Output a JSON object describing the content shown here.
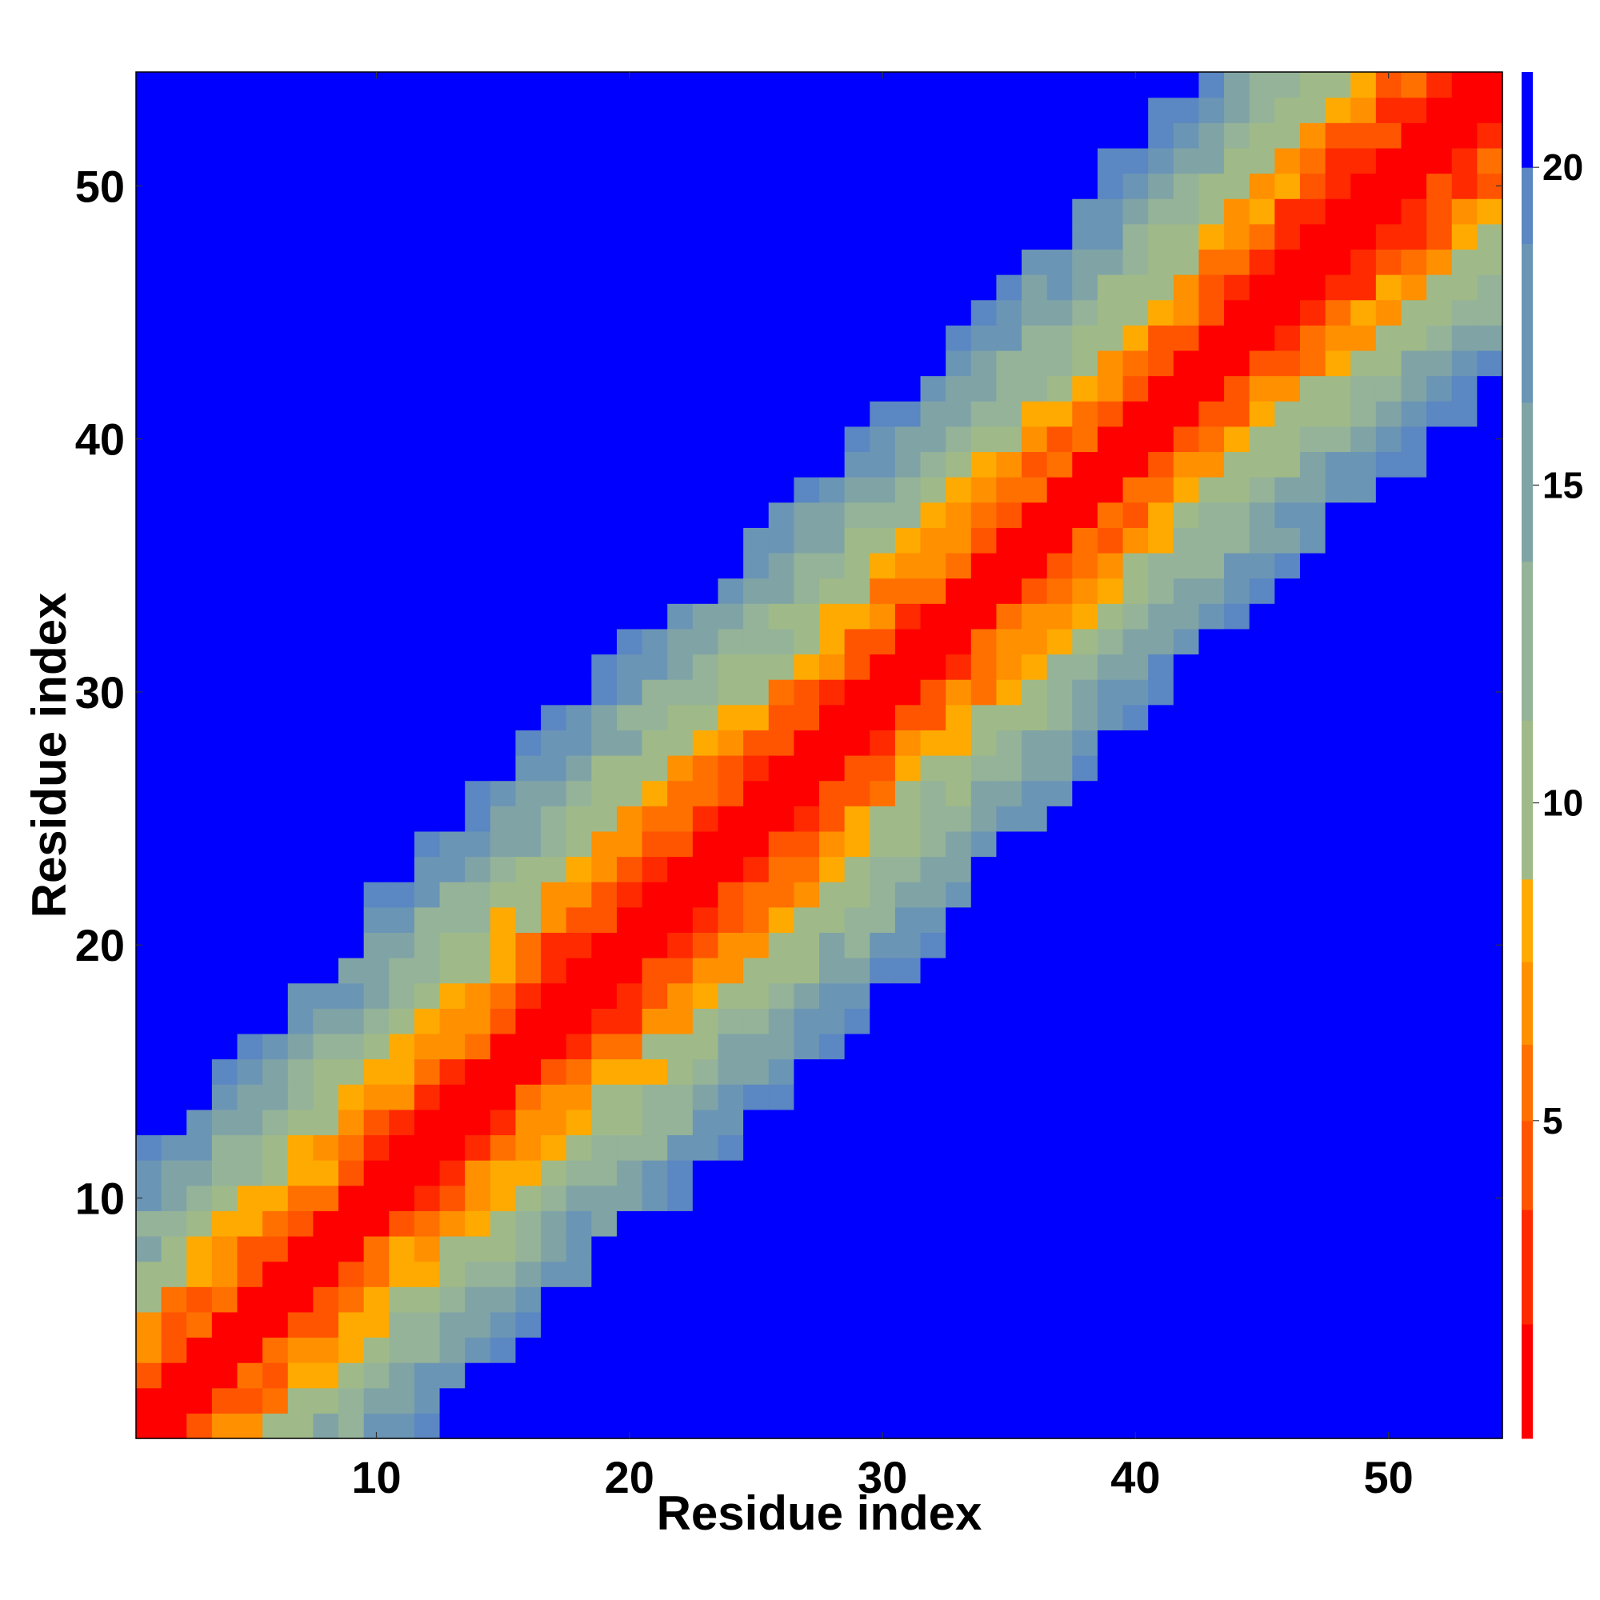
{
  "chart_data": {
    "type": "heatmap",
    "xlabel": "Residue index",
    "ylabel": "Residue index",
    "n": 54,
    "xlim": [
      0.5,
      54.5
    ],
    "ylim": [
      0.5,
      54.5
    ],
    "x_ticks": [
      10,
      20,
      30,
      40,
      50
    ],
    "y_ticks": [
      10,
      20,
      30,
      40,
      50
    ],
    "colorbar": {
      "ticks": [
        5,
        10,
        15,
        20
      ],
      "range": [
        0,
        21.5
      ],
      "bands": [
        {
          "from": 0,
          "to": 1.8,
          "color": "#ff0000"
        },
        {
          "from": 1.8,
          "to": 3.6,
          "color": "#ff2a00"
        },
        {
          "from": 3.6,
          "to": 5.0,
          "color": "#ff5500"
        },
        {
          "from": 5.0,
          "to": 6.2,
          "color": "#ff7000"
        },
        {
          "from": 6.2,
          "to": 7.5,
          "color": "#ff9000"
        },
        {
          "from": 7.5,
          "to": 8.8,
          "color": "#ffaa00"
        },
        {
          "from": 8.8,
          "to": 11.3,
          "color": "#9fba88"
        },
        {
          "from": 11.3,
          "to": 13.8,
          "color": "#95b398"
        },
        {
          "from": 13.8,
          "to": 16.3,
          "color": "#80a4a6"
        },
        {
          "from": 16.3,
          "to": 18.8,
          "color": "#6b95b5"
        },
        {
          "from": 18.8,
          "to": 20.0,
          "color": "#5b87c2"
        },
        {
          "from": 20.0,
          "to": 21.5,
          "color": "#0000ff"
        }
      ]
    },
    "matrix_description": "Symmetric residue-residue distance map; diagonal band red (<2), flanked by orange (5-8), green-grey (9-14), steel-blue (15-20), background blue (>20)."
  }
}
